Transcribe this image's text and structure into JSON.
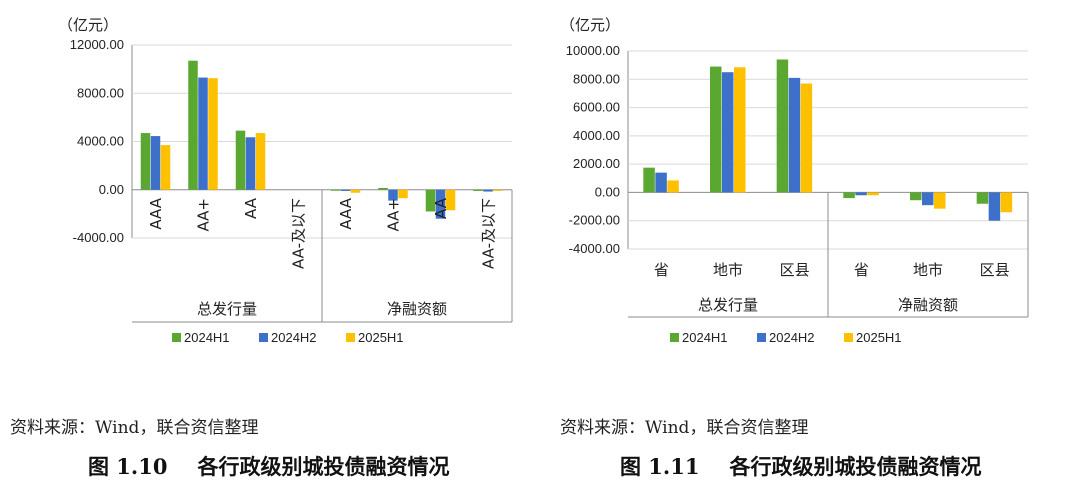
{
  "colors": {
    "2024H1": "#5aa832",
    "2024H2": "#3d70c8",
    "2025H1": "#ffc000",
    "axis": "#8c8c8c",
    "grid": "#d9d9d9"
  },
  "left": {
    "source": "资料来源：Wind，联合资信整理",
    "caption_num": "图 1.10",
    "caption_text": "各行政级别城投债融资情况"
  },
  "right": {
    "source": "资料来源：Wind，联合资信整理",
    "caption_num": "图 1.11",
    "caption_text": "各行政级别城投债融资情况"
  },
  "chart_data": [
    {
      "type": "bar",
      "unit_label": "（亿元）",
      "ylim": [
        -4000,
        12000
      ],
      "yticks": [
        "12000.00",
        "8000.00",
        "4000.00",
        "0.00",
        "-4000.00"
      ],
      "ytick_values": [
        12000,
        8000,
        4000,
        0,
        -4000
      ],
      "category_orientation": "rotated",
      "groups": [
        "总发行量",
        "净融资额"
      ],
      "categories": [
        "AAA",
        "AA+",
        "AA",
        "AA-及以下",
        "AAA",
        "AA+",
        "AA",
        "AA-及以下"
      ],
      "series": [
        {
          "name": "2024H1",
          "values": [
            4700,
            10700,
            4900,
            0,
            -50,
            150,
            -1800,
            -100
          ]
        },
        {
          "name": "2024H2",
          "values": [
            4450,
            9300,
            4350,
            0,
            -100,
            -900,
            -2400,
            -150
          ]
        },
        {
          "name": "2025H1",
          "values": [
            3700,
            9250,
            4700,
            0,
            -250,
            -700,
            -1700,
            -100
          ]
        }
      ],
      "legend": "bottom"
    },
    {
      "type": "bar",
      "unit_label": "（亿元）",
      "ylim": [
        -4000,
        10000
      ],
      "yticks": [
        "10000.00",
        "8000.00",
        "6000.00",
        "4000.00",
        "2000.00",
        "0.00",
        "-2000.00",
        "-4000.00"
      ],
      "ytick_values": [
        10000,
        8000,
        6000,
        4000,
        2000,
        0,
        -2000,
        -4000
      ],
      "category_orientation": "horizontal",
      "groups": [
        "总发行量",
        "净融资额"
      ],
      "categories": [
        "省",
        "地市",
        "区县",
        "省",
        "地市",
        "区县"
      ],
      "series": [
        {
          "name": "2024H1",
          "values": [
            1750,
            8900,
            9400,
            -400,
            -550,
            -800
          ]
        },
        {
          "name": "2024H2",
          "values": [
            1400,
            8500,
            8100,
            -200,
            -900,
            -2000
          ]
        },
        {
          "name": "2025H1",
          "values": [
            850,
            8850,
            7700,
            -200,
            -1150,
            -1400
          ]
        }
      ],
      "legend": "bottom"
    }
  ]
}
